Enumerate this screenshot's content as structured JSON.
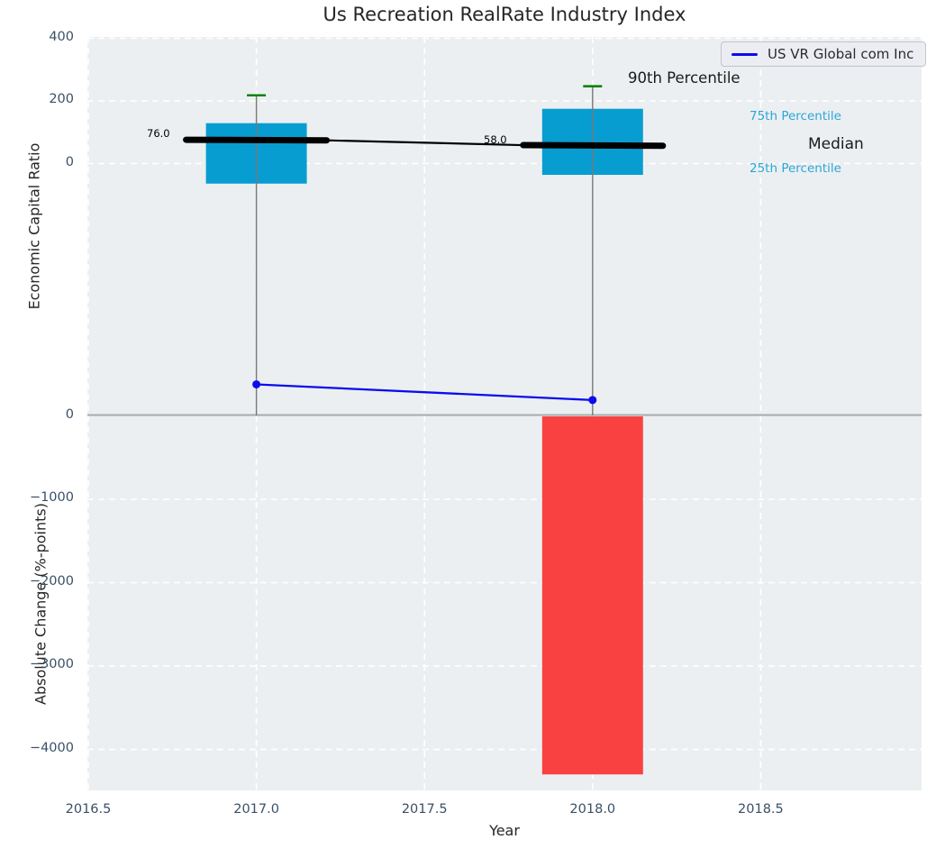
{
  "title": "Us Recreation RealRate Industry Index",
  "legend": {
    "label": "US VR Global com Inc"
  },
  "top_axis": {
    "ylabel": "Economic Capital Ratio",
    "yticks": [
      {
        "label": "400",
        "value": 400
      },
      {
        "label": "200",
        "value": 200
      },
      {
        "label": "0",
        "value": 0
      }
    ]
  },
  "bottom_axis": {
    "ylabel": "Absolute Change (%-points)",
    "yticks": [
      {
        "label": "0",
        "value": 0
      },
      {
        "label": "−1000",
        "value": -1000
      },
      {
        "label": "−2000",
        "value": -2000
      },
      {
        "label": "−3000",
        "value": -3000
      },
      {
        "label": "−4000",
        "value": -4000
      }
    ]
  },
  "x_axis": {
    "label": "Year",
    "ticks": [
      {
        "label": "2016.5",
        "value": 2016.5
      },
      {
        "label": "2017.0",
        "value": 2017
      },
      {
        "label": "2017.5",
        "value": 2017.5
      },
      {
        "label": "2018.0",
        "value": 2018
      },
      {
        "label": "2018.5",
        "value": 2018.5
      }
    ]
  },
  "annotations": {
    "p90": "90th Percentile",
    "p75": "75th Percentile",
    "median": "Median",
    "p25": "25th Percentile"
  },
  "chart_data": [
    {
      "type": "box",
      "title": "Us Recreation RealRate Industry Index",
      "ylabel": "Economic Capital Ratio",
      "x": [
        2017,
        2018
      ],
      "box_width": 0.3,
      "boxes": [
        {
          "x": 2017,
          "p90": 218,
          "p75": 129,
          "median": 76.0,
          "p25": -64,
          "median_label": "76.0"
        },
        {
          "x": 2018,
          "p90": 247,
          "p75": 175,
          "median": 58.0,
          "p25": -36,
          "median_label": "58.0"
        }
      ],
      "series": [
        {
          "name": "US VR Global com Inc",
          "type": "line",
          "x": [
            2017,
            2018
          ],
          "values": [
            -705,
            -755
          ]
        }
      ],
      "yticks": [
        400,
        200,
        0
      ],
      "ylim": [
        -805,
        410
      ],
      "grid": true,
      "legend_position": "upper right"
    },
    {
      "type": "bar",
      "ylabel": "Absolute Change (%-points)",
      "xlabel": "Year",
      "x": [
        2018
      ],
      "values": [
        -4300
      ],
      "bar_width": 0.3,
      "xlim": [
        2016.47,
        2018.97
      ],
      "ylim": [
        -4500,
        0
      ],
      "grid": true
    }
  ],
  "colors": {
    "box_fill": "#089dd1",
    "percentile_text": "#2ca6d8",
    "company_line": "#0b0bf0",
    "p90_cap": "#0a820a",
    "bar_negative": "#fa4141",
    "median_line": "#000000",
    "whisker": "#777777",
    "divider": "#a9a9a9",
    "plot_bg": "#eceff1",
    "grid": "#ffffff",
    "tick_text": "#3a5068",
    "text": "#262626"
  }
}
